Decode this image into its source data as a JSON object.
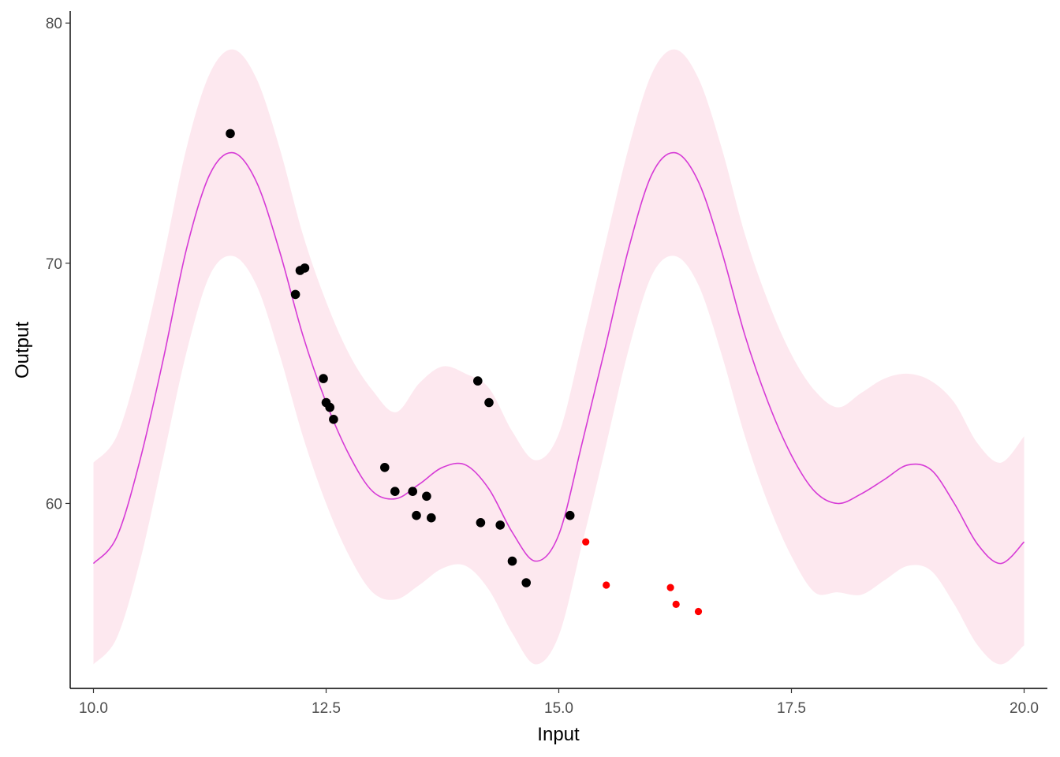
{
  "chart_data": {
    "type": "line",
    "title": "",
    "xlabel": "Input",
    "ylabel": "Output",
    "xlim": [
      9.75,
      20.25
    ],
    "ylim": [
      52.3,
      80.5
    ],
    "x_ticks": [
      10.0,
      12.5,
      15.0,
      17.5,
      20.0
    ],
    "x_tick_labels": [
      "10.0",
      "12.5",
      "15.0",
      "17.5",
      "20.0"
    ],
    "y_ticks": [
      60,
      70,
      80
    ],
    "y_tick_labels": [
      "60",
      "70",
      "80"
    ],
    "grid": false,
    "legend": "none",
    "colors": {
      "band": "#fde8ef",
      "mean_line": "#d63ad6",
      "observed": "#000000",
      "held_out": "#ff0000",
      "axis": "#000000",
      "tick_text": "#4d4d4d"
    },
    "prediction": {
      "x": [
        10.0,
        10.25,
        10.5,
        10.75,
        11.0,
        11.25,
        11.5,
        11.75,
        12.0,
        12.25,
        12.5,
        12.75,
        13.0,
        13.25,
        13.5,
        13.75,
        14.0,
        14.25,
        14.5,
        14.75,
        15.0,
        15.25,
        15.5,
        15.75,
        16.0,
        16.25,
        16.5,
        16.75,
        17.0,
        17.25,
        17.5,
        17.75,
        18.0,
        18.25,
        18.5,
        18.75,
        19.0,
        19.25,
        19.5,
        19.75,
        20.0
      ],
      "mean": [
        57.5,
        58.6,
        61.8,
        66.0,
        70.6,
        73.7,
        74.6,
        73.4,
        70.5,
        67.0,
        64.2,
        62.0,
        60.5,
        60.2,
        60.8,
        61.5,
        61.6,
        60.6,
        58.8,
        57.6,
        58.7,
        62.5,
        66.5,
        70.6,
        73.7,
        74.6,
        73.4,
        70.5,
        67.0,
        64.2,
        62.0,
        60.5,
        60.0,
        60.4,
        61.0,
        61.6,
        61.4,
        60.0,
        58.3,
        57.5,
        58.4
      ],
      "lower": [
        53.3,
        54.4,
        57.6,
        61.9,
        66.3,
        69.5,
        70.3,
        69.1,
        66.2,
        62.8,
        60.0,
        57.8,
        56.3,
        56.0,
        56.6,
        57.3,
        57.4,
        56.4,
        54.6,
        53.3,
        54.5,
        58.3,
        62.3,
        66.4,
        69.5,
        70.3,
        69.1,
        66.2,
        62.8,
        60.0,
        57.8,
        56.3,
        56.3,
        56.2,
        56.8,
        57.4,
        57.2,
        55.8,
        54.1,
        53.3,
        54.1
      ],
      "upper": [
        61.7,
        62.8,
        66.0,
        70.2,
        74.8,
        77.9,
        78.9,
        77.7,
        74.8,
        71.2,
        68.4,
        66.2,
        64.7,
        63.8,
        65.0,
        65.7,
        65.4,
        64.8,
        63.0,
        61.8,
        62.9,
        66.7,
        70.8,
        74.8,
        77.9,
        78.9,
        77.7,
        74.8,
        71.2,
        68.4,
        66.2,
        64.7,
        64.0,
        64.6,
        65.2,
        65.4,
        65.1,
        64.2,
        62.5,
        61.7,
        62.8
      ]
    },
    "observed": {
      "x": [
        11.47,
        12.17,
        12.22,
        12.27,
        12.47,
        12.5,
        12.54,
        12.58,
        13.13,
        13.24,
        13.43,
        13.47,
        13.58,
        13.63,
        14.13,
        14.16,
        14.25,
        14.37,
        14.5,
        14.65,
        15.12
      ],
      "y": [
        75.4,
        68.7,
        69.7,
        69.8,
        65.2,
        64.2,
        64.0,
        63.5,
        61.5,
        60.5,
        60.5,
        59.5,
        60.3,
        59.4,
        65.1,
        59.2,
        64.2,
        59.1,
        57.6,
        56.7,
        59.5
      ]
    },
    "held_out": {
      "x": [
        15.29,
        15.51,
        16.2,
        16.26,
        16.5
      ],
      "y": [
        58.4,
        56.6,
        56.5,
        55.8,
        55.5
      ]
    }
  }
}
